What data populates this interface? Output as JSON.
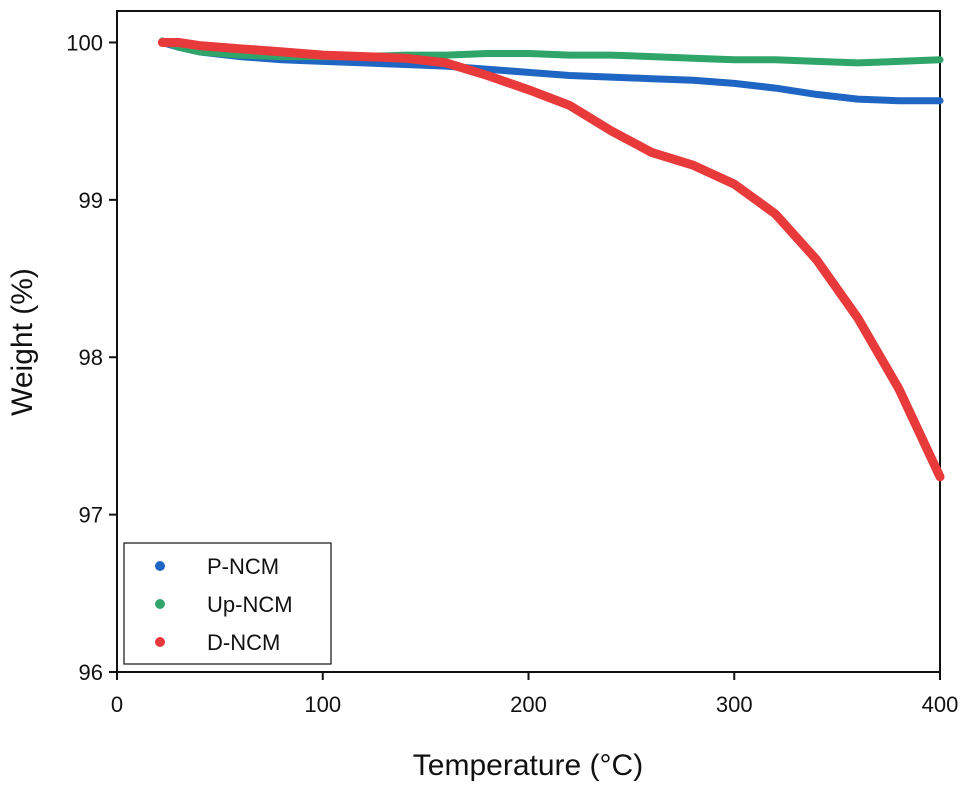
{
  "chart_data": {
    "type": "line",
    "xlabel": "Temperature (°C)",
    "ylabel": "Weight (%)",
    "xlim": [
      0,
      400
    ],
    "ylim": [
      96,
      100.2
    ],
    "xticks": [
      0,
      100,
      200,
      300,
      400
    ],
    "yticks": [
      96,
      97,
      98,
      99,
      100
    ],
    "xtick_labels": [
      "0",
      "100",
      "200",
      "300",
      "400"
    ],
    "ytick_labels": [
      "96",
      "97",
      "98",
      "99",
      "100"
    ],
    "grid": false,
    "legend_position": "bottom-left",
    "series": [
      {
        "name": "P-NCM",
        "color": "#1f66c4",
        "x": [
          22,
          30,
          40,
          60,
          80,
          100,
          120,
          140,
          160,
          180,
          200,
          220,
          240,
          260,
          280,
          300,
          320,
          340,
          360,
          380,
          400
        ],
        "y": [
          100.0,
          99.97,
          99.94,
          99.91,
          99.89,
          99.88,
          99.87,
          99.86,
          99.85,
          99.83,
          99.81,
          99.79,
          99.78,
          99.77,
          99.76,
          99.74,
          99.71,
          99.67,
          99.64,
          99.63,
          99.63
        ]
      },
      {
        "name": "Up-NCM",
        "color": "#2fa56a",
        "x": [
          22,
          30,
          40,
          60,
          80,
          100,
          120,
          140,
          160,
          180,
          200,
          220,
          240,
          260,
          280,
          300,
          320,
          340,
          360,
          380,
          400
        ],
        "y": [
          100.01,
          99.97,
          99.94,
          99.92,
          99.91,
          99.91,
          99.91,
          99.92,
          99.92,
          99.93,
          99.93,
          99.92,
          99.92,
          99.91,
          99.9,
          99.89,
          99.89,
          99.88,
          99.87,
          99.88,
          99.89
        ]
      },
      {
        "name": "D-NCM",
        "color": "#e8393b",
        "x": [
          22,
          30,
          40,
          60,
          80,
          100,
          120,
          140,
          160,
          180,
          200,
          220,
          240,
          260,
          280,
          300,
          320,
          340,
          360,
          380,
          400
        ],
        "y": [
          100.0,
          100.0,
          99.98,
          99.96,
          99.94,
          99.92,
          99.91,
          99.9,
          99.87,
          99.79,
          99.7,
          99.6,
          99.44,
          99.3,
          99.22,
          99.1,
          98.91,
          98.62,
          98.25,
          97.8,
          97.24
        ]
      }
    ]
  }
}
